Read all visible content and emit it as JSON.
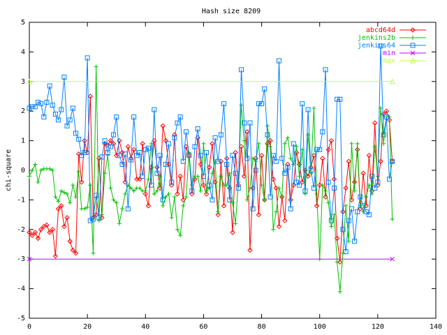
{
  "chart_data": {
    "type": "line",
    "title": "Hash size 8209",
    "y_label": "chi-square",
    "xlim": [
      0,
      140
    ],
    "xticks": [
      0,
      20,
      40,
      60,
      80,
      100,
      120,
      140
    ],
    "ylim": [
      -5,
      5
    ],
    "yticks": [
      -5,
      -4,
      -3,
      -2,
      -1,
      0,
      1,
      2,
      3,
      4,
      5
    ],
    "x": [
      0,
      1,
      2,
      3,
      4,
      5,
      6,
      7,
      8,
      9,
      10,
      11,
      12,
      13,
      14,
      15,
      16,
      17,
      18,
      19,
      20,
      21,
      22,
      23,
      24,
      25,
      26,
      27,
      28,
      29,
      30,
      31,
      32,
      33,
      34,
      35,
      36,
      37,
      38,
      39,
      40,
      41,
      42,
      43,
      44,
      45,
      46,
      47,
      48,
      49,
      50,
      51,
      52,
      53,
      54,
      55,
      56,
      57,
      58,
      59,
      60,
      61,
      62,
      63,
      64,
      65,
      66,
      67,
      68,
      69,
      70,
      71,
      72,
      73,
      74,
      75,
      76,
      77,
      78,
      79,
      80,
      81,
      82,
      83,
      84,
      85,
      86,
      87,
      88,
      89,
      90,
      91,
      92,
      93,
      94,
      95,
      96,
      97,
      98,
      99,
      100,
      101,
      102,
      103,
      104,
      105,
      106,
      107,
      108,
      109,
      110,
      111,
      112,
      113,
      114,
      115,
      116,
      117,
      118,
      119,
      120,
      121,
      122,
      123,
      124,
      125
    ],
    "legend": "upper right",
    "series": [
      {
        "name": "abcd64d",
        "color": "#ff0000",
        "marker": "diamond",
        "values": [
          -2.1,
          -2.2,
          -2.1,
          -2.3,
          -2.0,
          -1.9,
          -1.85,
          -2.1,
          -2.0,
          -2.9,
          -1.3,
          -1.2,
          -1.9,
          -1.6,
          -2.4,
          -2.7,
          -2.8,
          0.55,
          -0.4,
          1.0,
          0.6,
          2.5,
          -1.6,
          -1.5,
          0.4,
          -1.6,
          0.9,
          0.85,
          1.0,
          0.9,
          0.5,
          1.0,
          0.6,
          -0.4,
          0.8,
          0.4,
          0.7,
          -0.3,
          -0.3,
          0.9,
          -0.8,
          -1.2,
          0.1,
          1.0,
          0.1,
          -0.6,
          1.5,
          1.0,
          0.2,
          -0.5,
          1.2,
          -0.8,
          -0.2,
          -1.0,
          0.8,
          0.5,
          -0.8,
          -0.3,
          1.1,
          0.2,
          -0.5,
          -0.8,
          0.1,
          0.9,
          -0.4,
          -1.5,
          0.3,
          -1.2,
          0.4,
          -0.6,
          -2.1,
          0.6,
          -0.5,
          0.8,
          -0.2,
          1.3,
          -2.7,
          -0.6,
          0.4,
          -1.5,
          0.5,
          -1.0,
          0.9,
          1.0,
          -0.3,
          -0.6,
          -1.9,
          -0.9,
          -1.7,
          0.2,
          -1.0,
          -0.5,
          0.6,
          0.2,
          -0.4,
          0.0,
          -0.2,
          0.1,
          0.5,
          -1.2,
          -0.5,
          0.4,
          -0.9,
          0.7,
          1.0,
          -0.3,
          -2.3,
          -3.1,
          -1.4,
          -0.6,
          0.3,
          -1.0,
          -0.4,
          0.7,
          -1.3,
          -0.1,
          -1.2,
          0.5,
          -0.7,
          1.6,
          -0.5,
          0.3,
          1.9,
          2.0,
          1.7,
          0.3
        ]
      },
      {
        "name": "jenkins2b",
        "color": "#00c000",
        "marker": "plus",
        "values": [
          -0.2,
          0.0,
          0.2,
          -0.4,
          0.0,
          0.05,
          0.05,
          0.05,
          0.0,
          -0.9,
          -1.05,
          -0.7,
          -0.75,
          -0.8,
          -1.1,
          -0.5,
          -0.9,
          -0.05,
          -1.3,
          -1.3,
          -1.25,
          -0.5,
          -2.8,
          3.5,
          -1.7,
          -1.5,
          -0.1,
          0.5,
          -0.6,
          -1.0,
          -1.1,
          -1.8,
          -1.3,
          -0.8,
          -0.5,
          -0.6,
          -0.7,
          -0.6,
          -0.6,
          -0.7,
          -0.7,
          -0.3,
          0.9,
          -0.8,
          -0.7,
          -0.2,
          -1.2,
          -0.9,
          -0.8,
          -1.6,
          -0.9,
          -2.0,
          -2.2,
          -1.2,
          -0.9,
          0.6,
          -0.5,
          -0.2,
          -0.2,
          -0.7,
          0.9,
          -0.7,
          -0.6,
          -0.1,
          0.3,
          -1.4,
          -0.2,
          -0.5,
          -0.5,
          -0.1,
          -1.1,
          -1.8,
          -0.4,
          2.2,
          1.0,
          -1.0,
          -0.6,
          0.4,
          0.3,
          0.9,
          -0.5,
          -1.0,
          1.5,
          0.8,
          -2.0,
          -1.4,
          -0.6,
          -0.9,
          0.9,
          1.1,
          0.4,
          0.2,
          0.8,
          -0.2,
          0.7,
          -0.8,
          1.2,
          -0.1,
          2.1,
          -0.8,
          -3.0,
          -0.5,
          -0.7,
          -1.1,
          -1.9,
          -1.5,
          -3.1,
          -4.1,
          -2.8,
          -1.2,
          -2.4,
          0.9,
          -0.7,
          0.9,
          -1.2,
          -1.4,
          -0.9,
          -0.5,
          -0.8,
          0.8,
          -0.2,
          2.1,
          0.9,
          1.8,
          1.8,
          -1.65
        ]
      },
      {
        "name": "jenkins64",
        "color": "#0080ff",
        "marker": "square",
        "values": [
          2.1,
          2.15,
          2.15,
          2.3,
          2.25,
          1.8,
          2.3,
          2.85,
          2.2,
          1.9,
          1.7,
          2.05,
          3.15,
          1.5,
          1.7,
          2.1,
          1.25,
          1.05,
          0.5,
          0.6,
          3.8,
          -1.7,
          -1.65,
          -0.85,
          -1.6,
          0.45,
          1.0,
          0.6,
          0.8,
          1.2,
          1.8,
          0.5,
          0.2,
          0.55,
          -1.3,
          0.35,
          1.8,
          0.5,
          0.6,
          -0.2,
          0.7,
          0.75,
          -0.5,
          2.05,
          -0.1,
          0.5,
          -1.0,
          0.2,
          0.9,
          -0.4,
          1.1,
          1.6,
          1.8,
          0.3,
          1.3,
          0.5,
          -0.7,
          0.8,
          1.4,
          0.5,
          -0.2,
          0.6,
          -0.5,
          -1.0,
          1.1,
          0.3,
          1.2,
          2.25,
          0.2,
          -1.0,
          0.5,
          -0.1,
          -0.6,
          3.4,
          1.6,
          0.4,
          1.6,
          -1.3,
          0.0,
          2.25,
          2.25,
          2.75,
          1.2,
          -0.9,
          0.5,
          0.3,
          3.7,
          0.4,
          -0.1,
          0.1,
          -1.3,
          0.9,
          -0.4,
          -0.5,
          2.25,
          -0.7,
          2.05,
          0.0,
          -0.6,
          0.7,
          0.7,
          1.3,
          3.4,
          -0.4,
          -1.7,
          -0.6,
          2.4,
          2.4,
          -2.0,
          -2.75,
          -1.7,
          -1.3,
          -2.4,
          -1.4,
          -0.9,
          -1.2,
          -1.4,
          -1.5,
          -0.2,
          -0.6,
          -0.4,
          4.2,
          1.2,
          1.8,
          -0.3,
          0.3
        ]
      },
      {
        "name": "min",
        "color": "#c000ff",
        "marker": "cross",
        "x": [
          0,
          125
        ],
        "values": [
          -3,
          -3
        ]
      },
      {
        "name": "max",
        "color": "#c0ff40",
        "marker": "triangle",
        "x": [
          0,
          125
        ],
        "values": [
          3,
          3
        ]
      }
    ]
  }
}
